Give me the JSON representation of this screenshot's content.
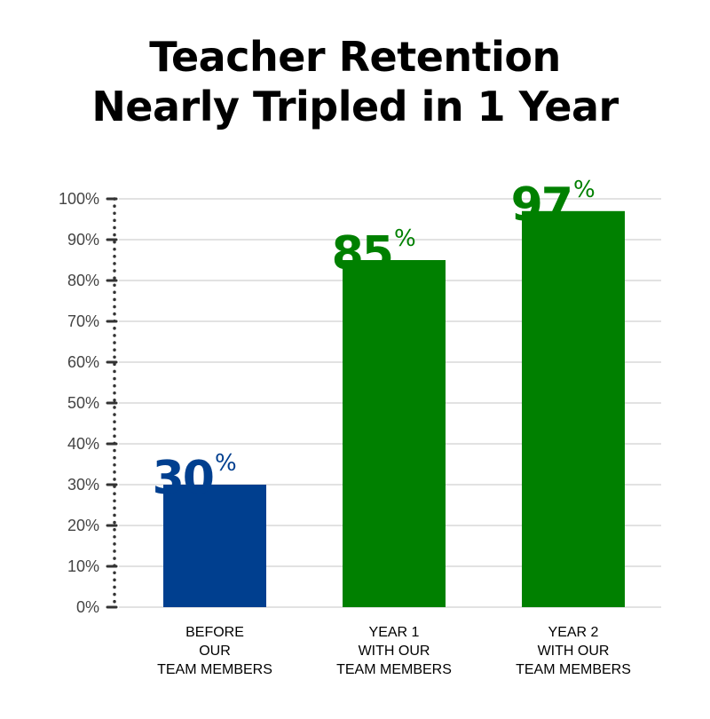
{
  "chart_data": {
    "type": "bar",
    "title": [
      "Teacher Retention",
      "Nearly Tripled in 1 Year"
    ],
    "categories": [
      [
        "BEFORE",
        "OUR",
        "TEAM MEMBERS"
      ],
      [
        "YEAR 1",
        "WITH OUR",
        "TEAM MEMBERS"
      ],
      [
        "YEAR 2",
        "WITH OUR",
        "TEAM MEMBERS"
      ]
    ],
    "values": [
      30,
      85,
      97
    ],
    "value_labels": [
      "30",
      "85",
      "97"
    ],
    "value_suffix": "%",
    "colors": [
      "#003f8f",
      "#008000",
      "#008000"
    ],
    "ylim": [
      0,
      100
    ],
    "yticks": [
      "0%",
      "10%",
      "20%",
      "30%",
      "40%",
      "50%",
      "60%",
      "70%",
      "80%",
      "90%",
      "100%"
    ],
    "grid": true,
    "xlabel": "",
    "ylabel": ""
  }
}
